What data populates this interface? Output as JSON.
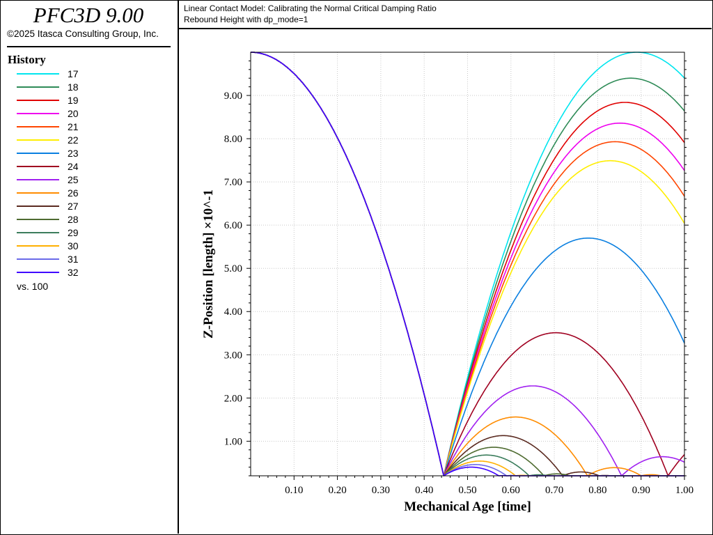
{
  "app": {
    "title": "PFC3D 9.00",
    "copyright": "©2025 Itasca Consulting Group, Inc."
  },
  "header": {
    "line1": "Linear Contact Model: Calibrating the Normal Critical Damping Ratio",
    "line2": "Rebound Height with dp_mode=1"
  },
  "legend": {
    "heading": "History",
    "footer": "vs. 100",
    "items": [
      {
        "label": "17",
        "color": "#00e5ee"
      },
      {
        "label": "18",
        "color": "#2e8b57"
      },
      {
        "label": "19",
        "color": "#e00000"
      },
      {
        "label": "20",
        "color": "#ee00ee"
      },
      {
        "label": "21",
        "color": "#ff4500"
      },
      {
        "label": "22",
        "color": "#ffee00"
      },
      {
        "label": "23",
        "color": "#0a7fe0"
      },
      {
        "label": "24",
        "color": "#a00020"
      },
      {
        "label": "25",
        "color": "#a020f0"
      },
      {
        "label": "26",
        "color": "#ff8c00"
      },
      {
        "label": "27",
        "color": "#5a2a20"
      },
      {
        "label": "28",
        "color": "#4e6b30"
      },
      {
        "label": "29",
        "color": "#3b7d5c"
      },
      {
        "label": "30",
        "color": "#ffb000"
      },
      {
        "label": "31",
        "color": "#6a6ae8"
      },
      {
        "label": "32",
        "color": "#4000ff"
      }
    ]
  },
  "chart_data": {
    "type": "line",
    "xlabel": "Mechanical Age [time]",
    "ylabel": "Z-Position [length] ×10^-1",
    "xlim": [
      0,
      1.0
    ],
    "ylim": [
      0.2,
      10.0
    ],
    "xticks": [
      "0.10",
      "0.20",
      "0.30",
      "0.40",
      "0.50",
      "0.60",
      "0.70",
      "0.80",
      "0.90",
      "1.00"
    ],
    "yticks": [
      "1.00",
      "2.00",
      "3.00",
      "4.00",
      "5.00",
      "6.00",
      "7.00",
      "8.00",
      "9.00"
    ],
    "grid": true,
    "drop": {
      "start_height": 10.0,
      "floor": 0.2,
      "impact_time": 0.445
    },
    "series": [
      {
        "name": "17",
        "peak_height": 10.0
      },
      {
        "name": "18",
        "peak_height": 9.4
      },
      {
        "name": "19",
        "peak_height": 8.84
      },
      {
        "name": "20",
        "peak_height": 8.36
      },
      {
        "name": "21",
        "peak_height": 7.93
      },
      {
        "name": "22",
        "peak_height": 7.49
      },
      {
        "name": "23",
        "peak_height": 5.7
      },
      {
        "name": "24",
        "peak_height": 3.51
      },
      {
        "name": "25",
        "peak_height": 2.28
      },
      {
        "name": "26",
        "peak_height": 1.56
      },
      {
        "name": "27",
        "peak_height": 1.13
      },
      {
        "name": "28",
        "peak_height": 0.86
      },
      {
        "name": "29",
        "peak_height": 0.68
      },
      {
        "name": "30",
        "peak_height": 0.54
      },
      {
        "name": "31",
        "peak_height": 0.46
      },
      {
        "name": "32",
        "peak_height": 0.4
      }
    ]
  }
}
